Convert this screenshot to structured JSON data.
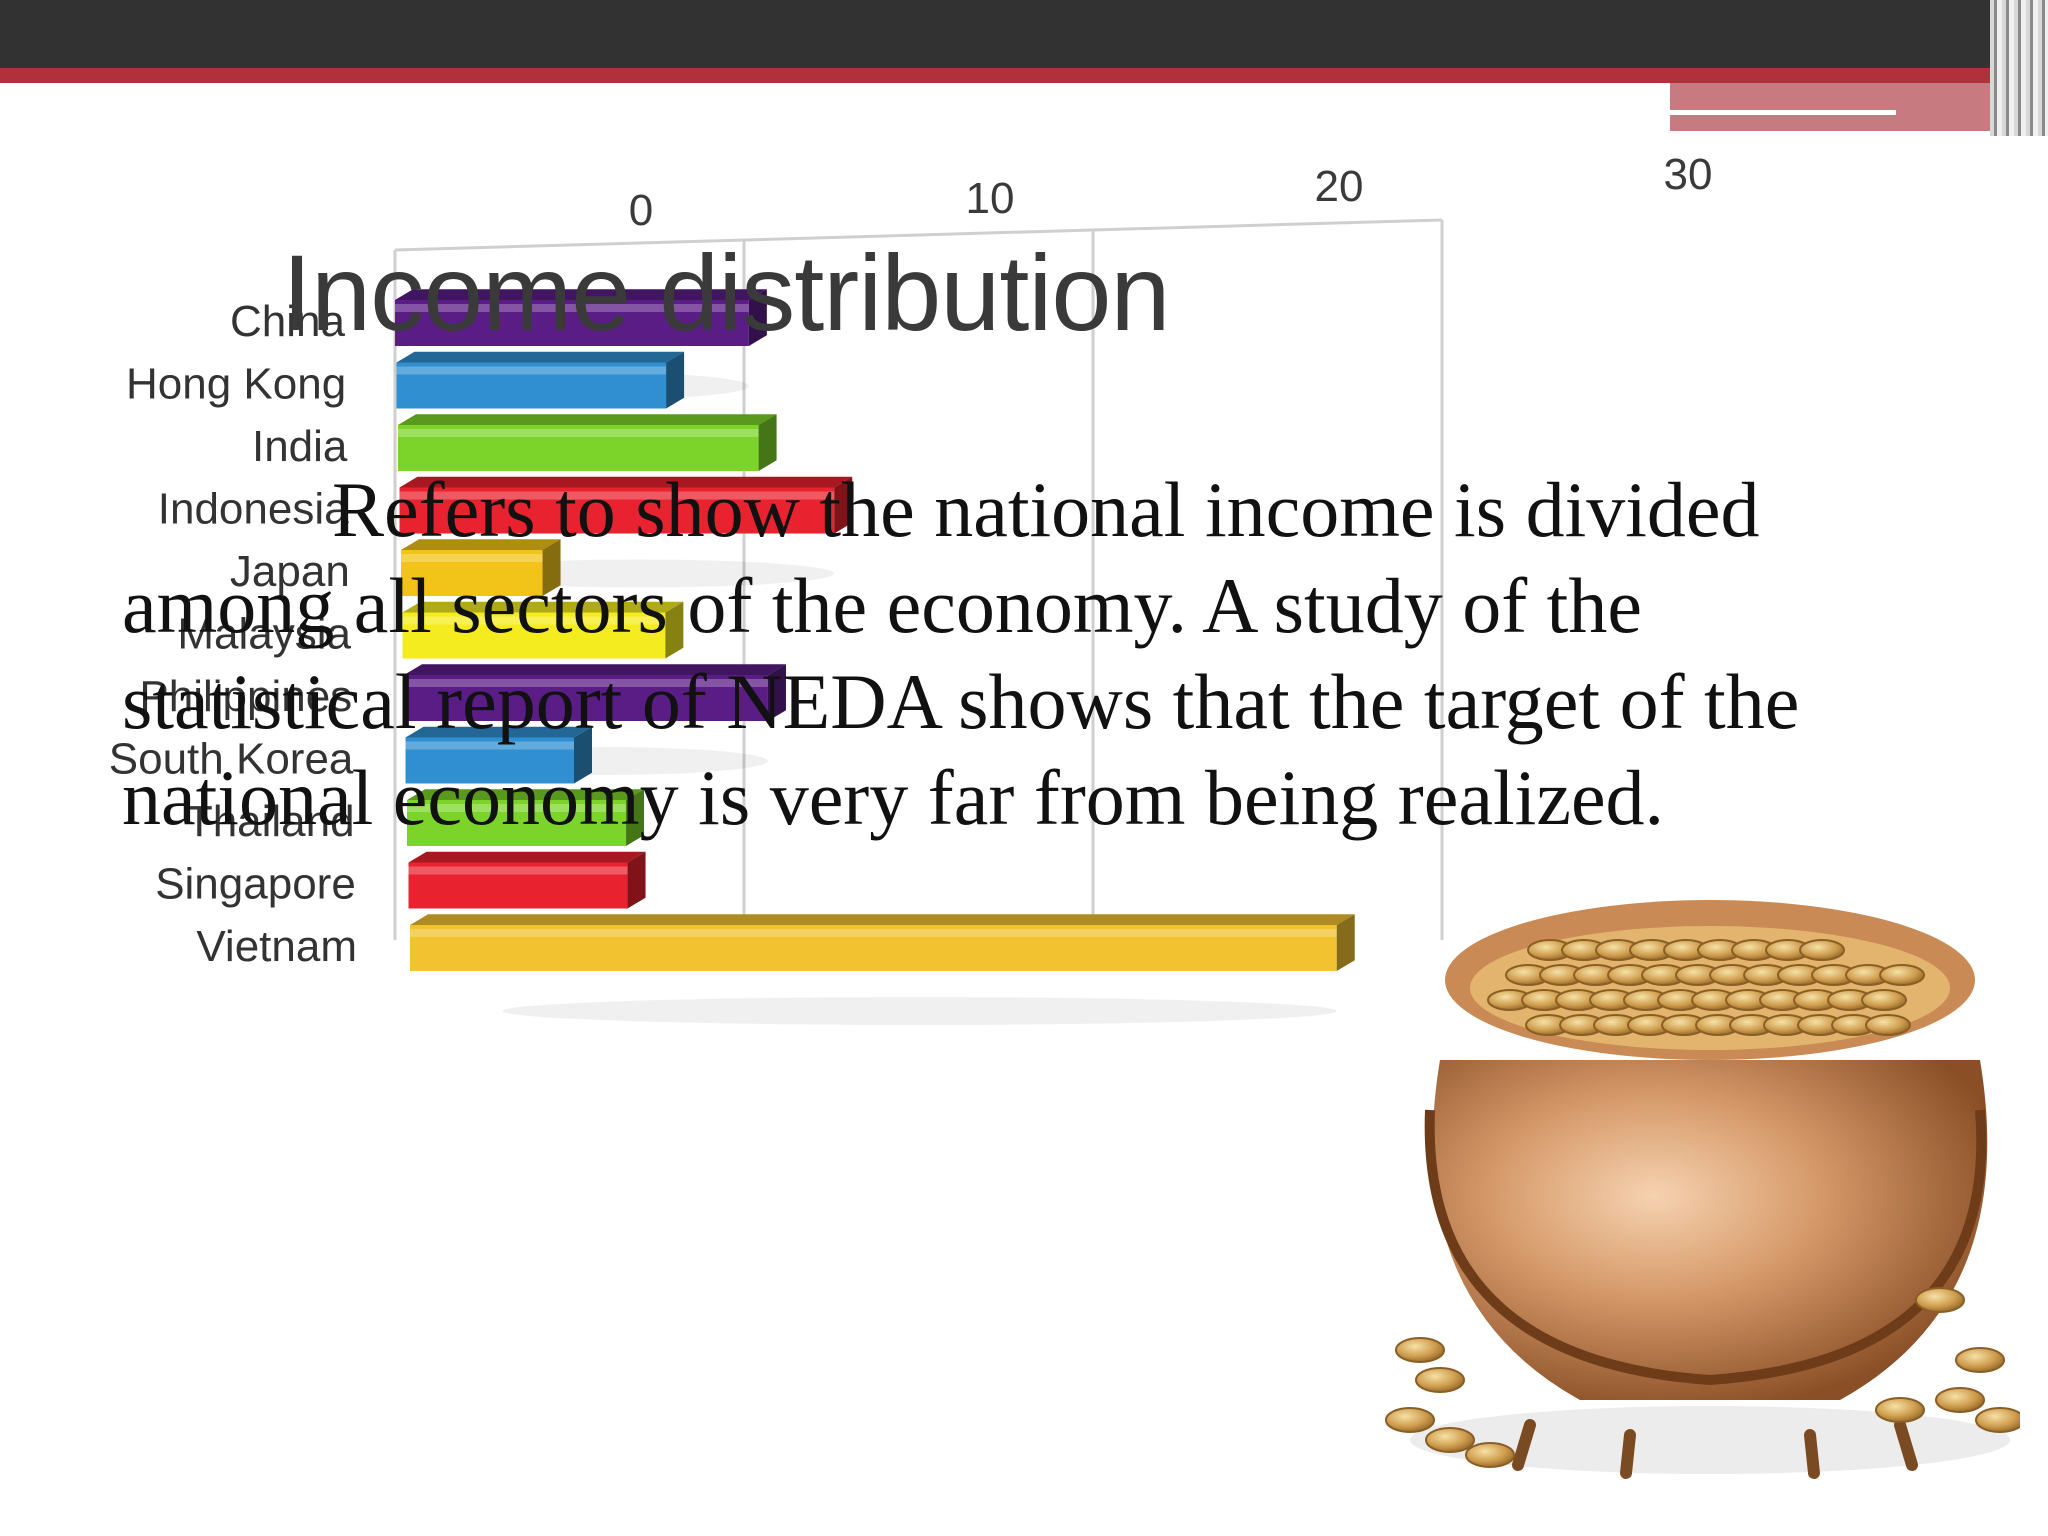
{
  "slide": {
    "title": "Income distribution",
    "body_lines": [
      "Refers to show the national income is divided",
      "among all sectors of the economy. A study of the",
      "statistical report of NEDA shows that the target of the",
      "national economy is very far from being realized."
    ]
  },
  "chart_data": {
    "type": "bar",
    "orientation": "horizontal",
    "style": "3d",
    "categories": [
      "China",
      "Hong Kong",
      "India",
      "Indonesia",
      "Japan",
      "Malaysia",
      "Philippines",
      "South Korea",
      "Thailand",
      "Singapore",
      "Vietnam"
    ],
    "values": [
      10.5,
      8,
      10.7,
      12.9,
      4.2,
      7.8,
      10.8,
      5,
      6.5,
      6.5,
      27.5
    ],
    "colors": [
      "#5a1d86",
      "#2f8fd0",
      "#7cd42a",
      "#e8222e",
      "#f2c41a",
      "#f4ec1e",
      "#5a1d86",
      "#2f8fd0",
      "#7cd42a",
      "#e8222e",
      "#f2c230"
    ],
    "x_ticks": [
      "0",
      "10",
      "20",
      "30"
    ],
    "xlim": [
      0,
      30
    ],
    "grid": true
  },
  "images": {
    "pot": "pot-of-gold-coins"
  }
}
